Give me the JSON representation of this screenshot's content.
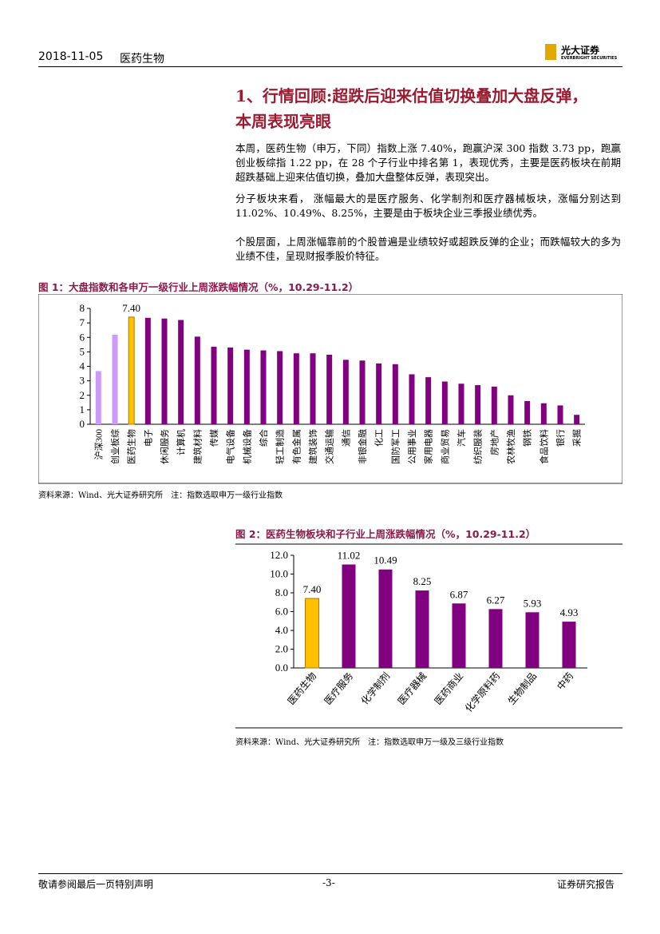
{
  "header": {
    "date": "2018-11-05",
    "section": "医药生物",
    "logo_cn": "光大证券",
    "logo_en": "EVERBRIGHT SECURITIES"
  },
  "heading": [
    "1、行情回顾:超跌后迎来估值切换叠加大盘反弹，",
    "本周表现亮眼"
  ],
  "paragraphs": [
    "本周，医药生物（申万，下同）指数上涨 7.40%，跑赢沪深 300 指数 3.73 pp，跑赢创业板综指 1.22 pp，在 28 个子行业中排名第 1，表现优秀，主要是医药板块在前期超跌基础上迎来估值切换，叠加大盘整体反弹，表现突出。",
    "分子板块来看， 涨幅最大的是医疗服务、化学制剂和医疗器械板块，涨幅分别达到 11.02%、10.49%、8.25%，主要是由于板块企业三季报业绩优秀。",
    "个股层面，上周涨幅靠前的个股普遍是业绩较好或超跌反弹的企业；而跌幅较大的多为业绩不佳，呈现财报季股价特征。"
  ],
  "chart_data": [
    {
      "type": "bar",
      "title": "图 1：大盘指数和各申万一级行业上周涨跌幅情况（%，10.29-11.2）",
      "categories": [
        "沪深300",
        "创业板综",
        "医药生物",
        "电子",
        "休闲服务",
        "计算机",
        "建筑材料",
        "传媒",
        "电气设备",
        "机械设备",
        "综合",
        "轻工制造",
        "有色金属",
        "建筑装饰",
        "交通运输",
        "通信",
        "非银金融",
        "化工",
        "国防军工",
        "公用事业",
        "家用电器",
        "商业贸易",
        "汽车",
        "纺织服装",
        "房地产",
        "农林牧渔",
        "钢铁",
        "食品饮料",
        "银行",
        "采掘"
      ],
      "values": [
        3.67,
        6.18,
        7.4,
        7.35,
        7.3,
        7.2,
        6.05,
        5.35,
        5.3,
        5.15,
        5.1,
        5.05,
        4.9,
        4.9,
        4.8,
        4.45,
        4.4,
        4.2,
        4.15,
        3.45,
        3.25,
        2.95,
        2.8,
        2.7,
        2.6,
        2.0,
        1.6,
        1.45,
        1.3,
        0.65
      ],
      "value_labels": [
        null,
        null,
        "7.40",
        null,
        null,
        null,
        null,
        null,
        null,
        null,
        null,
        null,
        null,
        null,
        null,
        null,
        null,
        null,
        null,
        null,
        null,
        null,
        null,
        null,
        null,
        null,
        null,
        null,
        null,
        null
      ],
      "colors": [
        "#cc99ff",
        "#cc99ff",
        "#ffc000",
        "#800080",
        "#800080",
        "#800080",
        "#800080",
        "#800080",
        "#800080",
        "#800080",
        "#800080",
        "#800080",
        "#800080",
        "#800080",
        "#800080",
        "#800080",
        "#800080",
        "#800080",
        "#800080",
        "#800080",
        "#800080",
        "#800080",
        "#800080",
        "#800080",
        "#800080",
        "#800080",
        "#800080",
        "#800080",
        "#800080",
        "#800080"
      ],
      "ylim": [
        0,
        8
      ],
      "yticks": [
        0,
        1,
        2,
        3,
        4,
        5,
        6,
        7,
        8
      ],
      "source": "资料来源：Wind、光大证券研究所　注：指数选取申万一级行业指数"
    },
    {
      "type": "bar",
      "title": "图 2：医药生物板块和子行业上周涨跌幅情况（%，10.29-11.2）",
      "categories": [
        "医药生物",
        "医疗服务",
        "化学制剂",
        "医疗器械",
        "医药商业",
        "化学原料药",
        "生物制品",
        "中药"
      ],
      "values": [
        7.4,
        11.02,
        10.49,
        8.25,
        6.87,
        6.27,
        5.93,
        4.93
      ],
      "value_labels": [
        "7.40",
        "11.02",
        "10.49",
        "8.25",
        "6.87",
        "6.27",
        "5.93",
        "4.93"
      ],
      "colors": [
        "#ffc000",
        "#800080",
        "#800080",
        "#800080",
        "#800080",
        "#800080",
        "#800080",
        "#800080"
      ],
      "ylim": [
        0,
        12
      ],
      "yticks": [
        {
          "value": 0,
          "label": "0.0"
        },
        {
          "value": 2,
          "label": "2.0"
        },
        {
          "value": 4,
          "label": "4.0"
        },
        {
          "value": 6,
          "label": "6.0"
        },
        {
          "value": 8,
          "label": "8.0"
        },
        {
          "value": 10,
          "label": "10.0"
        },
        {
          "value": 12,
          "label": "12.0"
        }
      ],
      "source": "资料来源：Wind、光大证券研究所　注：指数选取申万一级及三级行业指数"
    }
  ]
}
